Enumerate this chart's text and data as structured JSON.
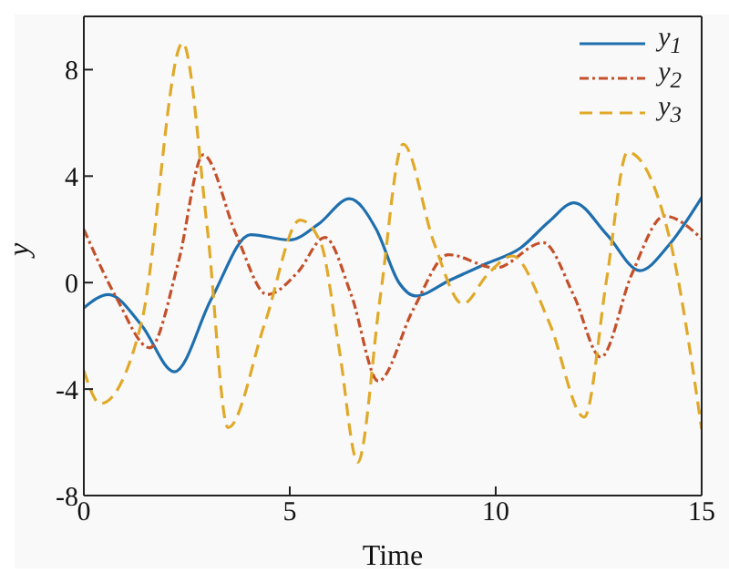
{
  "chart_data": {
    "type": "line",
    "xlabel": "Time",
    "ylabel": "y",
    "xlim": [
      0,
      15
    ],
    "ylim": [
      -8,
      10
    ],
    "xticks": [
      0,
      5,
      10,
      15
    ],
    "yticks": [
      -8,
      -4,
      0,
      4,
      8
    ],
    "legend": "top right",
    "marker": "none",
    "series": [
      {
        "name": "y$_{1}$",
        "color": "#1f6fae",
        "line_style": "solid",
        "x": [
          0,
          0.6,
          1.4,
          2.2,
          3.1,
          4.05,
          5.0,
          5.7,
          6.45,
          7.1,
          7.65,
          8.05,
          8.9,
          9.75,
          10.6,
          11.3,
          11.9,
          12.7,
          13.5,
          14.2,
          15
        ],
        "values": [
          -0.95,
          -0.45,
          -1.6,
          -3.35,
          -0.6,
          1.8,
          1.6,
          2.2,
          3.15,
          2.0,
          0,
          -0.5,
          0.1,
          0.7,
          1.3,
          2.3,
          3.0,
          1.8,
          0.45,
          1.4,
          3.2
        ]
      },
      {
        "name": "y$_{2}$",
        "color": "#c4502a",
        "line_style": "dashdot",
        "x": [
          0,
          0.8,
          1.6,
          2.3,
          2.9,
          3.7,
          4.45,
          5.2,
          5.85,
          6.5,
          7.15,
          8.0,
          8.85,
          10.0,
          11.15,
          11.9,
          12.55,
          13.3,
          14.1,
          15
        ],
        "values": [
          2.0,
          -0.6,
          -2.45,
          0.8,
          4.8,
          1.8,
          -0.45,
          0.4,
          1.7,
          -0.5,
          -3.7,
          -1.0,
          1.05,
          0.55,
          1.5,
          -0.5,
          -2.8,
          0.3,
          2.5,
          1.65
        ]
      },
      {
        "name": "y$_{3}$",
        "color": "#e0a928",
        "line_style": "dashed",
        "x": [
          0,
          0.4,
          1.4,
          2.4,
          3.0,
          3.5,
          4.4,
          5.25,
          5.75,
          6.2,
          6.65,
          7.2,
          7.75,
          8.5,
          9.2,
          9.8,
          10.4,
          11.3,
          12.15,
          12.7,
          13.2,
          14.2,
          15
        ],
        "values": [
          -3.3,
          -4.55,
          -1.5,
          9.0,
          2.0,
          -5.45,
          -1.5,
          2.35,
          1.5,
          -2.5,
          -6.75,
          -0.5,
          5.2,
          1.5,
          -0.8,
          0.3,
          1.0,
          -1.5,
          -5.05,
          0.2,
          4.9,
          1.8,
          -5.5
        ]
      }
    ]
  }
}
